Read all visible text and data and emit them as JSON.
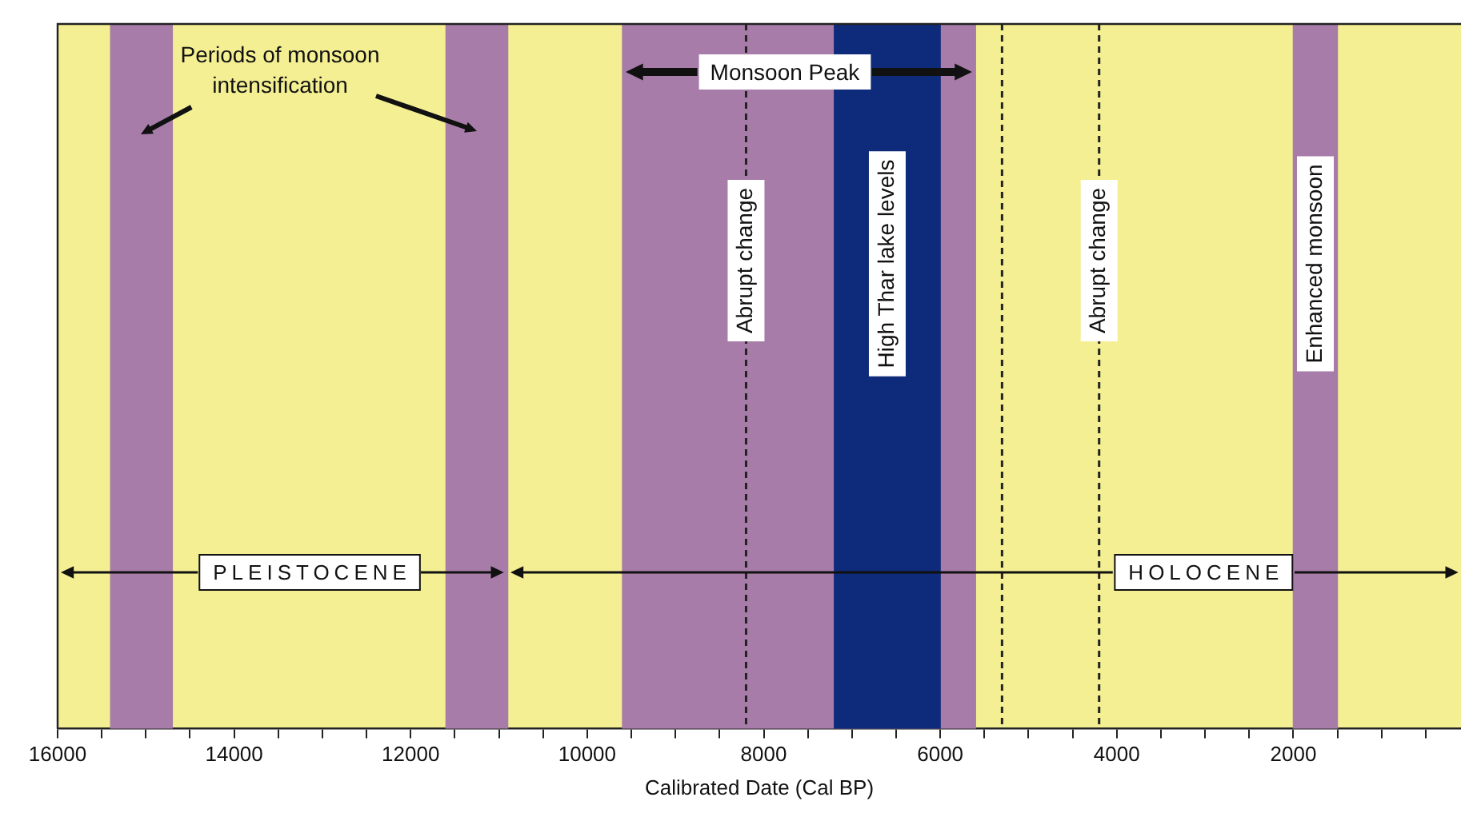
{
  "chart_data": {
    "type": "bar",
    "orientation": "horizontal",
    "xlabel": "Calibrated Date (Cal BP)",
    "categories": [
      null
    ],
    "series": [
      {
        "color": "#a77ca8",
        "values": [
          700
        ],
        "base": [
          14700
        ]
      },
      {
        "color": "#a77ca8",
        "values": [
          700
        ],
        "base": [
          10900
        ]
      },
      {
        "color": "#a77ca8",
        "values": [
          4000
        ],
        "base": [
          5600
        ]
      },
      {
        "name": "High Thar lake levels",
        "color": "#0e2a7a",
        "values": [
          1200
        ],
        "base": [
          6000
        ]
      },
      {
        "name": "Enhanced monsoon",
        "color": "#a77ca8",
        "values": [
          500
        ],
        "base": [
          1500
        ]
      }
    ],
    "xlim": [
      16000,
      100
    ],
    "xticks": [
      16000,
      {
        "value": 15500,
        "label": null
      },
      {
        "value": 15000,
        "label": null
      },
      {
        "value": 14500,
        "label": null
      },
      14000,
      {
        "value": 13500,
        "label": null
      },
      {
        "value": 13000,
        "label": null
      },
      {
        "value": 12500,
        "label": null
      },
      12000,
      {
        "value": 11500,
        "label": null
      },
      {
        "value": 11000,
        "label": null
      },
      {
        "value": 10500,
        "label": null
      },
      10000,
      {
        "value": 9500,
        "label": null
      },
      {
        "value": 9000,
        "label": null
      },
      {
        "value": 8500,
        "label": null
      },
      8000,
      {
        "value": 7500,
        "label": null
      },
      {
        "value": 7000,
        "label": null
      },
      {
        "value": 6500,
        "label": null
      },
      6000,
      {
        "value": 5500,
        "label": null
      },
      {
        "value": 5000,
        "label": null
      },
      {
        "value": 4500,
        "label": null
      },
      4000,
      {
        "value": 3500,
        "label": null
      },
      {
        "value": 3000,
        "label": null
      },
      {
        "value": 2500,
        "label": null
      },
      2000,
      {
        "value": 1500,
        "label": null
      },
      {
        "value": 1000,
        "label": null
      },
      {
        "value": 500,
        "label": null
      }
    ],
    "tick_labels": "x",
    "legend": false,
    "ref_lines": [
      {
        "axis": "x",
        "value": 8200,
        "label": "Abrupt change",
        "color": "#222222",
        "line_style": "dashed"
      },
      {
        "axis": "x",
        "value": 5300,
        "label": null,
        "color": "#222222",
        "line_style": "dashed"
      },
      {
        "axis": "x",
        "value": 4200,
        "label": "Abrupt change",
        "color": "#222222",
        "line_style": "dashed"
      }
    ],
    "annotations": [
      "Periods of monsoon intensification",
      "Monsoon Peak",
      "PLEISTOCENE",
      "HOLOCENE"
    ]
  }
}
